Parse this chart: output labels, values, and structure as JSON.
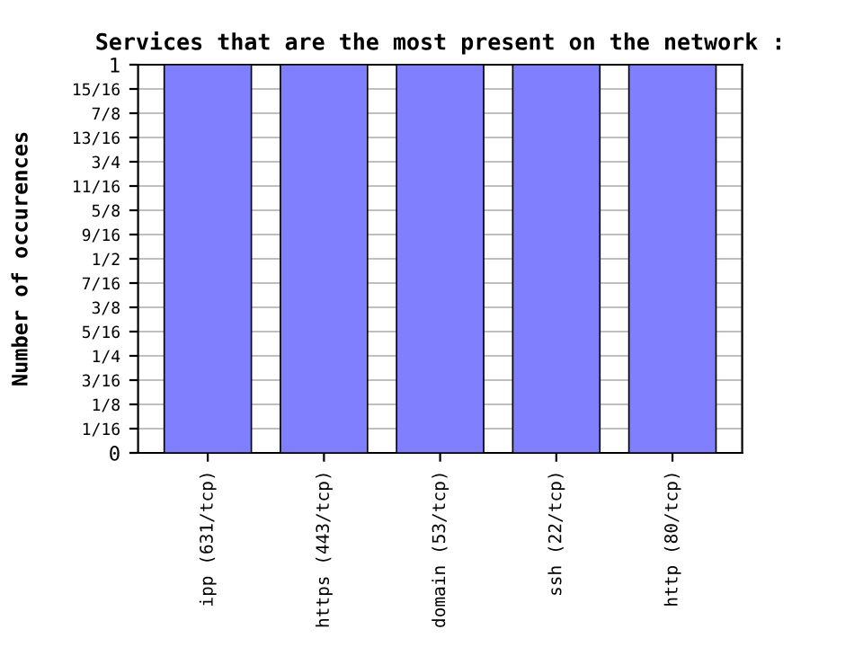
{
  "chart_data": {
    "type": "bar",
    "title": "Services that are the most present on the network :",
    "ylabel": "Number of occurences",
    "categories": [
      "ipp (631/tcp)",
      "https (443/tcp)",
      "domain (53/tcp)",
      "ssh (22/tcp)",
      "http (80/tcp)"
    ],
    "values": [
      1,
      1,
      1,
      1,
      1
    ],
    "color": "#8080ff",
    "ylim": [
      0,
      1
    ],
    "yticks": [
      0,
      {
        "value": 0.0625,
        "label": "1/16"
      },
      {
        "value": 0.125,
        "label": "1/8"
      },
      {
        "value": 0.1875,
        "label": "3/16"
      },
      {
        "value": 0.25,
        "label": "1/4"
      },
      {
        "value": 0.3125,
        "label": "5/16"
      },
      {
        "value": 0.375,
        "label": "3/8"
      },
      {
        "value": 0.4375,
        "label": "7/16"
      },
      {
        "value": 0.5,
        "label": "1/2"
      },
      {
        "value": 0.5625,
        "label": "9/16"
      },
      {
        "value": 0.625,
        "label": "5/8"
      },
      {
        "value": 0.6875,
        "label": "11/16"
      },
      {
        "value": 0.75,
        "label": "3/4"
      },
      {
        "value": 0.8125,
        "label": "13/16"
      },
      {
        "value": 0.875,
        "label": "7/8"
      },
      {
        "value": 0.9375,
        "label": "15/16"
      },
      1
    ],
    "grid": "y"
  }
}
